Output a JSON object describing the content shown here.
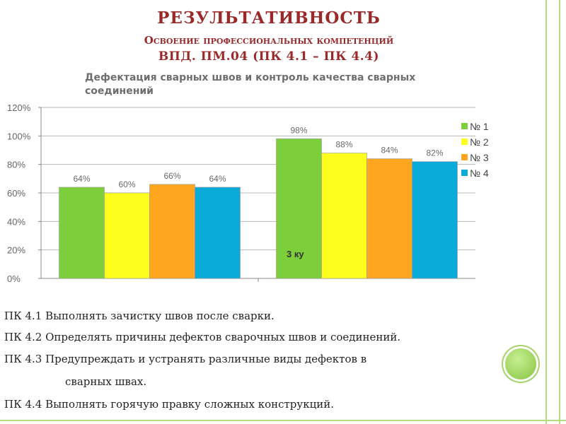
{
  "slide": {
    "title": "РЕЗУЛЬТАТИВНОСТЬ",
    "subtitle": "Освоение профессиональных компетенций",
    "subtitle2": "ВПД. ПМ.04 (ПК 4.1 – ПК 4.4)"
  },
  "chart_title": {
    "line1": "Дефектация сварных швов и контроль качества сварных",
    "line2": "соединений"
  },
  "chart_data": {
    "type": "bar",
    "title": "Дефектация сварных швов и контроль качества сварных соединений",
    "categories": [
      "",
      "3 ку"
    ],
    "series": [
      {
        "name": "№ 1",
        "values": [
          64,
          98
        ],
        "color": "#7ccf3b"
      },
      {
        "name": "№ 2",
        "values": [
          60,
          88
        ],
        "color": "#ffff1e"
      },
      {
        "name": "№ 3",
        "values": [
          66,
          84
        ],
        "color": "#ffa61e"
      },
      {
        "name": "№ 4",
        "values": [
          64,
          82
        ],
        "color": "#0aabd9"
      }
    ],
    "data_labels": [
      [
        "64%",
        "60%",
        "66%",
        "64%"
      ],
      [
        "98%",
        "88%",
        "84%",
        "82%"
      ]
    ],
    "yticks": [
      "0%",
      "20%",
      "40%",
      "60%",
      "80%",
      "100%",
      "120%"
    ],
    "ylim": [
      0,
      120
    ],
    "grid": true,
    "legend": "right"
  },
  "objectives": [
    "ПК 4.1 Выполнять зачистку швов после сварки.",
    "ПК 4.2 Определять причины дефектов сварочных швов и соединений.",
    "ПК 4.3 Предупреждать и устранять различные виды дефектов в",
    "сварных швах.",
    "ПК 4.4 Выполнять горячую правку сложных конструкций."
  ],
  "colors": {
    "title": "#9a2a2a",
    "frame": "#b6dc7e"
  }
}
